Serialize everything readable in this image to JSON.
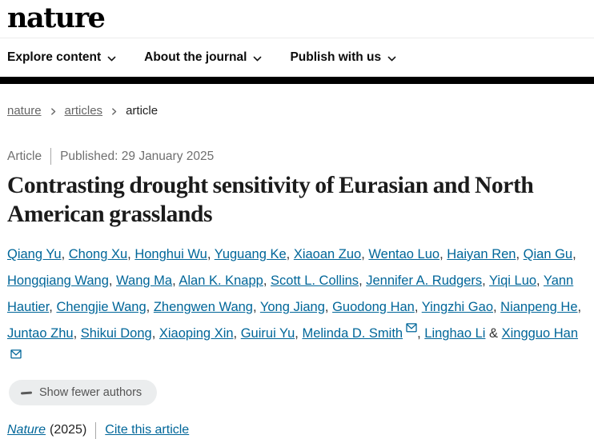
{
  "header": {
    "logo": "nature",
    "nav": [
      {
        "label": "Explore content"
      },
      {
        "label": "About the journal"
      },
      {
        "label": "Publish with us"
      }
    ]
  },
  "breadcrumb": {
    "items": [
      {
        "label": "nature"
      },
      {
        "label": "articles"
      },
      {
        "label": "article"
      }
    ]
  },
  "article": {
    "type_label": "Article",
    "published_text": "Published: 29 January 2025",
    "title": "Contrasting drought sensitivity of Eurasian and North American grasslands"
  },
  "authors": {
    "separator": ", ",
    "last_separator": " & ",
    "show_fewer_label": "Show fewer authors",
    "list": [
      {
        "name": "Qiang Yu"
      },
      {
        "name": "Chong Xu"
      },
      {
        "name": "Honghui Wu"
      },
      {
        "name": "Yuguang Ke"
      },
      {
        "name": "Xiaoan Zuo"
      },
      {
        "name": "Wentao Luo"
      },
      {
        "name": "Haiyan Ren"
      },
      {
        "name": "Qian Gu"
      },
      {
        "name": "Hongqiang Wang"
      },
      {
        "name": "Wang Ma"
      },
      {
        "name": "Alan K. Knapp"
      },
      {
        "name": "Scott L. Collins"
      },
      {
        "name": "Jennifer A. Rudgers"
      },
      {
        "name": "Yiqi Luo"
      },
      {
        "name": "Yann Hautier"
      },
      {
        "name": "Chengjie Wang"
      },
      {
        "name": "Zhengwen Wang"
      },
      {
        "name": "Yong Jiang"
      },
      {
        "name": "Guodong Han"
      },
      {
        "name": "Yingzhi Gao"
      },
      {
        "name": "Nianpeng He"
      },
      {
        "name": "Juntao Zhu"
      },
      {
        "name": "Shikui Dong"
      },
      {
        "name": "Xiaoping Xin"
      },
      {
        "name": "Guirui Yu"
      },
      {
        "name": "Melinda D. Smith",
        "email": true
      },
      {
        "name": "Linghao Li"
      },
      {
        "name": "Xingguo Han",
        "email": true
      }
    ]
  },
  "citation": {
    "journal": "Nature",
    "year": "(2025)",
    "cite_label": "Cite this article"
  },
  "colors": {
    "link": "#006699",
    "muted_text": "#6f6f6f",
    "breadcrumb_link": "#666666",
    "title_text": "#1b1b1b",
    "bar": "#000000",
    "pill_bg": "#ebedee"
  }
}
